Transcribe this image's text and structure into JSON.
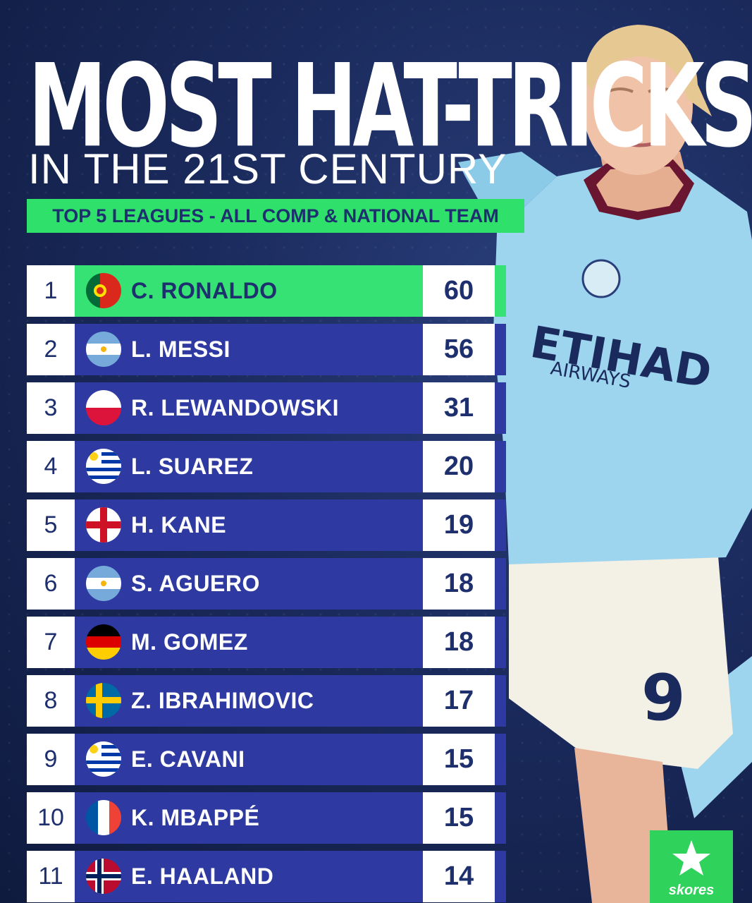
{
  "header": {
    "title": "MOST HAT-TRICKS",
    "subtitle": "IN THE 21ST CENTURY",
    "tagline": "TOP 5 LEAGUES - ALL COMP & NATIONAL TEAM"
  },
  "rows": [
    {
      "rank": "1",
      "name": "C. RONALDO",
      "count": "60",
      "flag": "portugal-flag-icon"
    },
    {
      "rank": "2",
      "name": "L. MESSI",
      "count": "56",
      "flag": "argentina-flag-icon"
    },
    {
      "rank": "3",
      "name": "R. LEWANDOWSKI",
      "count": "31",
      "flag": "poland-flag-icon"
    },
    {
      "rank": "4",
      "name": "L. SUAREZ",
      "count": "20",
      "flag": "uruguay-flag-icon"
    },
    {
      "rank": "5",
      "name": "H. KANE",
      "count": "19",
      "flag": "england-flag-icon"
    },
    {
      "rank": "6",
      "name": "S. AGUERO",
      "count": "18",
      "flag": "argentina-flag-icon"
    },
    {
      "rank": "7",
      "name": "M. GOMEZ",
      "count": "18",
      "flag": "germany-flag-icon"
    },
    {
      "rank": "8",
      "name": "Z. IBRAHIMOVIC",
      "count": "17",
      "flag": "sweden-flag-icon"
    },
    {
      "rank": "9",
      "name": "E. CAVANI",
      "count": "15",
      "flag": "uruguay-flag-icon"
    },
    {
      "rank": "10",
      "name": "K. MBAPPÉ",
      "count": "15",
      "flag": "france-flag-icon"
    },
    {
      "rank": "11",
      "name": "E. HAALAND",
      "count": "14",
      "flag": "norway-flag-icon"
    }
  ],
  "player": {
    "shirt_sponsor": "ETIHAD",
    "shirt_sponsor_sub": "AIRWAYS",
    "shirt_number": "9"
  },
  "brand": {
    "logo_text": "skores"
  },
  "colors": {
    "background": "#1a2a5c",
    "row": "#2e3aa1",
    "highlight": "#35e273",
    "text_dark": "#1e2f6e",
    "shirt": "#9dd4ee"
  }
}
